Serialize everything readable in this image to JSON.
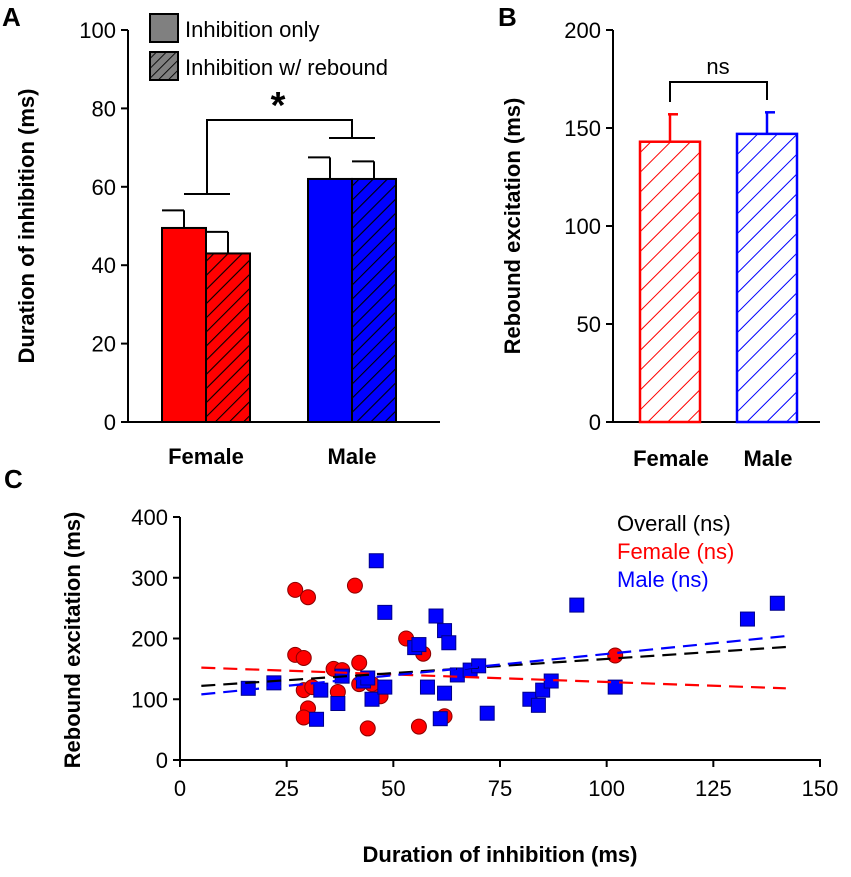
{
  "colors": {
    "female": "#ff0000",
    "male": "#0000ff",
    "black": "#000000",
    "legend_fill": "#808080"
  },
  "chart_data": [
    {
      "panel": "A",
      "type": "bar",
      "ylabel": "Duration of inhibition (ms)",
      "ylim": [
        0,
        100
      ],
      "yticks": [
        "0",
        "20",
        "40",
        "60",
        "80",
        "100"
      ],
      "categories": [
        "Female",
        "Male"
      ],
      "series": [
        {
          "name": "Inhibition only",
          "values": [
            49.5,
            62
          ],
          "errors": [
            4.5,
            5.5
          ],
          "pattern": "solid"
        },
        {
          "name": "Inhibition w/ rebound",
          "values": [
            43,
            62
          ],
          "errors": [
            5.5,
            4.5
          ],
          "pattern": "hatched"
        }
      ],
      "significance": "*"
    },
    {
      "panel": "B",
      "type": "bar",
      "ylabel": "Rebound excitation (ms)",
      "ylim": [
        0,
        200
      ],
      "yticks": [
        "0",
        "50",
        "100",
        "150",
        "200"
      ],
      "categories": [
        "Female",
        "Male"
      ],
      "values": [
        143,
        147
      ],
      "errors": [
        14,
        11
      ],
      "significance": "ns"
    },
    {
      "panel": "C",
      "type": "scatter",
      "xlabel": "Duration of inhibition (ms)",
      "ylabel": "Rebound excitation (ms)",
      "xlim": [
        0,
        150
      ],
      "ylim": [
        0,
        400
      ],
      "xticks": [
        "0",
        "25",
        "50",
        "75",
        "100",
        "125",
        "150"
      ],
      "yticks": [
        "0",
        "100",
        "200",
        "300",
        "400"
      ],
      "legend": [
        "Overall (ns)",
        "Female (ns)",
        "Male (ns)"
      ],
      "female_points": [
        [
          27,
          280
        ],
        [
          30,
          268
        ],
        [
          41,
          287
        ],
        [
          27,
          173
        ],
        [
          29,
          168
        ],
        [
          29,
          115
        ],
        [
          31,
          120
        ],
        [
          30,
          85
        ],
        [
          29,
          70
        ],
        [
          36,
          150
        ],
        [
          38,
          148
        ],
        [
          37,
          112
        ],
        [
          42,
          160
        ],
        [
          42,
          125
        ],
        [
          45,
          125
        ],
        [
          47,
          105
        ],
        [
          44,
          52
        ],
        [
          53,
          200
        ],
        [
          57,
          175
        ],
        [
          56,
          55
        ],
        [
          62,
          72
        ],
        [
          102,
          172
        ]
      ],
      "male_points": [
        [
          16,
          118
        ],
        [
          22,
          127
        ],
        [
          32,
          67
        ],
        [
          33,
          115
        ],
        [
          37,
          93
        ],
        [
          38,
          138
        ],
        [
          43,
          130
        ],
        [
          44,
          135
        ],
        [
          45,
          100
        ],
        [
          46,
          328
        ],
        [
          48,
          243
        ],
        [
          48,
          120
        ],
        [
          55,
          185
        ],
        [
          56,
          190
        ],
        [
          58,
          120
        ],
        [
          60,
          237
        ],
        [
          61,
          68
        ],
        [
          62,
          110
        ],
        [
          62,
          213
        ],
        [
          63,
          193
        ],
        [
          65,
          140
        ],
        [
          68,
          148
        ],
        [
          70,
          155
        ],
        [
          72,
          77
        ],
        [
          82,
          100
        ],
        [
          84,
          90
        ],
        [
          85,
          115
        ],
        [
          87,
          130
        ],
        [
          93,
          255
        ],
        [
          102,
          120
        ],
        [
          133,
          232
        ],
        [
          140,
          258
        ]
      ],
      "fits": {
        "overall": {
          "x": [
            5,
            142
          ],
          "y": [
            122,
            186
          ]
        },
        "female": {
          "x": [
            5,
            142
          ],
          "y": [
            152,
            118
          ]
        },
        "male": {
          "x": [
            5,
            142
          ],
          "y": [
            108,
            204
          ]
        }
      }
    }
  ],
  "panel_labels": [
    "A",
    "B",
    "C"
  ]
}
